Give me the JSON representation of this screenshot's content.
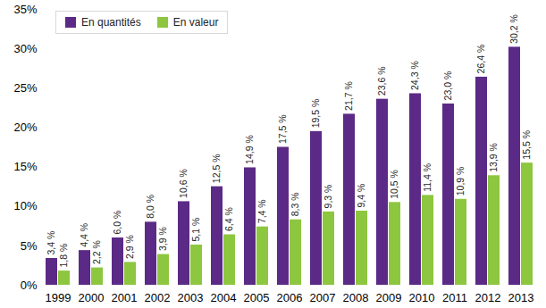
{
  "chart_data": {
    "type": "bar",
    "categories": [
      "1999",
      "2000",
      "2001",
      "2002",
      "2003",
      "2004",
      "2005",
      "2006",
      "2007",
      "2008",
      "2009",
      "2010",
      "2011",
      "2012",
      "2013"
    ],
    "series": [
      {
        "name": "En quantités",
        "color": "#5b2a86",
        "values": [
          3.4,
          4.4,
          6.0,
          8.0,
          10.6,
          12.5,
          14.9,
          17.5,
          19.5,
          21.7,
          23.6,
          24.3,
          23.0,
          26.4,
          30.2
        ],
        "value_labels": [
          "3,4 %",
          "4,4 %",
          "6,0 %",
          "8,0 %",
          "10,6 %",
          "12,5 %",
          "14,9 %",
          "17,5 %",
          "19,5 %",
          "21,7 %",
          "23,6 %",
          "24,3 %",
          "23,0 %",
          "26,4 %",
          "30,2 %"
        ]
      },
      {
        "name": "En valeur",
        "color": "#8dc63f",
        "values": [
          1.8,
          2.2,
          2.9,
          3.9,
          5.1,
          6.4,
          7.4,
          8.3,
          9.3,
          9.4,
          10.5,
          11.4,
          10.9,
          13.9,
          15.5
        ],
        "value_labels": [
          "1,8 %",
          "2,2 %",
          "2,9 %",
          "3,9 %",
          "5,1 %",
          "6,4 %",
          "7,4 %",
          "8,3 %",
          "9,3 %",
          "9,4 %",
          "10,5 %",
          "11,4 %",
          "10,9 %",
          "13,9 %",
          "15,5 %"
        ]
      }
    ],
    "ylim": [
      0,
      35
    ],
    "yticks": [
      {
        "value": 0,
        "label": "0%"
      },
      {
        "value": 5,
        "label": "5%"
      },
      {
        "value": 10,
        "label": "10%"
      },
      {
        "value": 15,
        "label": "15%"
      },
      {
        "value": 20,
        "label": "20%"
      },
      {
        "value": 25,
        "label": "25%"
      },
      {
        "value": 30,
        "label": "30%"
      },
      {
        "value": 35,
        "label": "35%"
      }
    ],
    "grid": false,
    "legend": "top-left",
    "data_labels": true
  }
}
